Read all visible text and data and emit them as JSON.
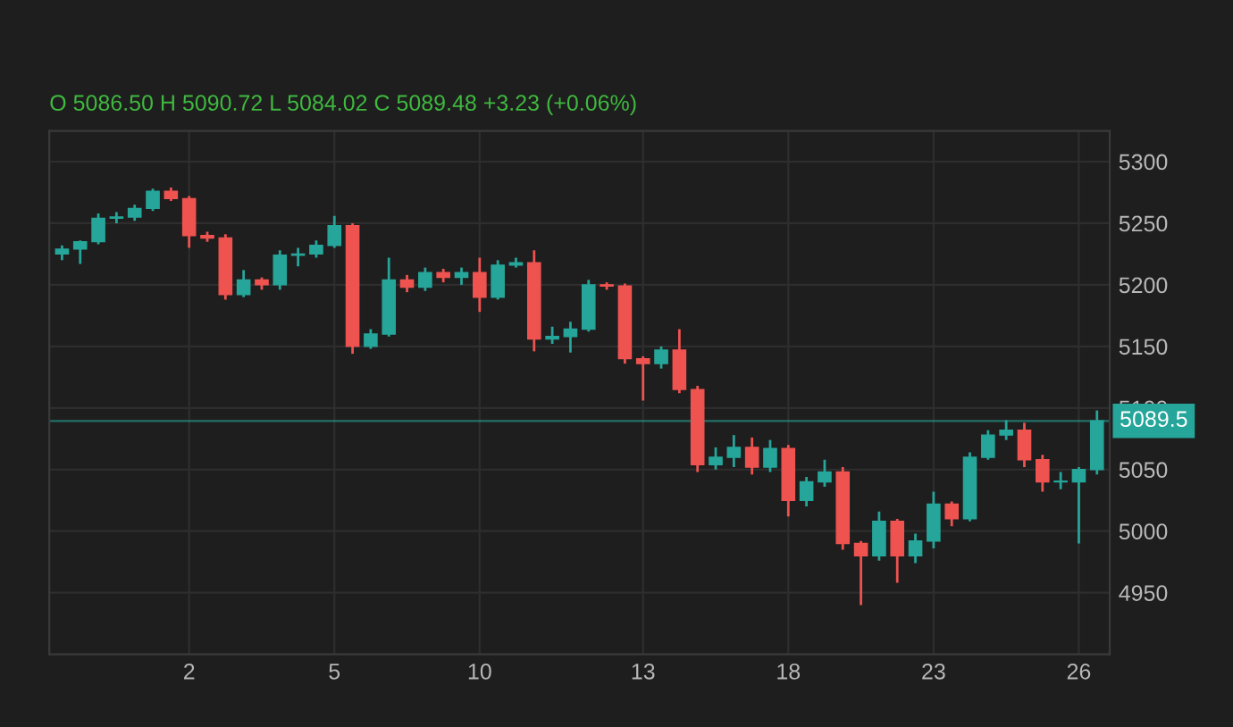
{
  "chart_data": {
    "type": "candlestick",
    "annotations": [
      "O 5086.50 H 5090.72 L 5084.02 C 5089.48 +3.23 (+0.06%)"
    ],
    "categories": [
      null,
      null,
      null,
      null,
      null,
      null,
      null,
      "2",
      null,
      null,
      null,
      null,
      null,
      null,
      null,
      "5",
      null,
      null,
      null,
      null,
      null,
      null,
      null,
      "10",
      null,
      null,
      null,
      null,
      null,
      null,
      null,
      null,
      "13",
      null,
      null,
      null,
      null,
      null,
      null,
      null,
      "18",
      null,
      null,
      null,
      null,
      null,
      null,
      null,
      "23",
      null,
      null,
      null,
      null,
      null,
      null,
      null,
      "26",
      null
    ],
    "ohlc": [
      [
        5225,
        5232,
        5220,
        5229
      ],
      [
        5229,
        5236,
        5217,
        5235
      ],
      [
        5235,
        5258,
        5233,
        5254
      ],
      [
        5254,
        5259,
        5250,
        5255
      ],
      [
        5255,
        5265,
        5252,
        5262
      ],
      [
        5262,
        5278,
        5260,
        5276
      ],
      [
        5276,
        5279,
        5268,
        5270
      ],
      [
        5270,
        5272,
        5230,
        5240
      ],
      [
        5240,
        5243,
        5235,
        5238
      ],
      [
        5238,
        5241,
        5188,
        5192
      ],
      [
        5192,
        5212,
        5190,
        5204
      ],
      [
        5204,
        5206,
        5196,
        5200
      ],
      [
        5200,
        5228,
        5196,
        5224
      ],
      [
        5224,
        5230,
        5215,
        5225
      ],
      [
        5225,
        5236,
        5222,
        5232
      ],
      [
        5232,
        5256,
        5230,
        5248
      ],
      [
        5248,
        5250,
        5144,
        5150
      ],
      [
        5150,
        5164,
        5148,
        5160
      ],
      [
        5160,
        5222,
        5158,
        5204
      ],
      [
        5204,
        5208,
        5194,
        5198
      ],
      [
        5198,
        5214,
        5195,
        5210
      ],
      [
        5210,
        5213,
        5202,
        5206
      ],
      [
        5206,
        5214,
        5200,
        5210
      ],
      [
        5210,
        5222,
        5178,
        5190
      ],
      [
        5190,
        5220,
        5188,
        5216
      ],
      [
        5216,
        5222,
        5214,
        5218
      ],
      [
        5218,
        5228,
        5146,
        5156
      ],
      [
        5156,
        5166,
        5152,
        5158
      ],
      [
        5158,
        5170,
        5145,
        5164
      ],
      [
        5164,
        5204,
        5162,
        5200
      ],
      [
        5200,
        5202,
        5196,
        5199
      ],
      [
        5199,
        5201,
        5136,
        5140
      ],
      [
        5140,
        5142,
        5106,
        5136
      ],
      [
        5136,
        5150,
        5132,
        5147
      ],
      [
        5147,
        5164,
        5112,
        5115
      ],
      [
        5115,
        5118,
        5048,
        5054
      ],
      [
        5054,
        5068,
        5050,
        5060
      ],
      [
        5060,
        5078,
        5052,
        5068
      ],
      [
        5068,
        5076,
        5046,
        5052
      ],
      [
        5052,
        5074,
        5048,
        5067
      ],
      [
        5067,
        5070,
        5012,
        5025
      ],
      [
        5025,
        5044,
        5020,
        5040
      ],
      [
        5040,
        5058,
        5036,
        5048
      ],
      [
        5048,
        5052,
        4985,
        4990
      ],
      [
        4990,
        4992,
        4940,
        4980
      ],
      [
        4980,
        5016,
        4976,
        5008
      ],
      [
        5008,
        5010,
        4958,
        4980
      ],
      [
        4980,
        4998,
        4974,
        4992
      ],
      [
        4992,
        5032,
        4986,
        5022
      ],
      [
        5022,
        5024,
        5004,
        5010
      ],
      [
        5010,
        5064,
        5008,
        5060
      ],
      [
        5060,
        5082,
        5058,
        5078
      ],
      [
        5078,
        5090,
        5074,
        5082
      ],
      [
        5082,
        5088,
        5052,
        5058
      ],
      [
        5058,
        5062,
        5032,
        5040
      ],
      [
        5040,
        5048,
        5034,
        5040
      ],
      [
        5040,
        5052,
        4990,
        5050
      ],
      [
        5050,
        5098,
        5046,
        5089.5
      ]
    ],
    "colors": [
      "#26a69a",
      "#26a69a",
      "#26a69a",
      "#26a69a",
      "#26a69a",
      "#26a69a",
      "#ef5350",
      "#ef5350",
      "#ef5350",
      "#ef5350",
      "#26a69a",
      "#ef5350",
      "#26a69a",
      "#26a69a",
      "#26a69a",
      "#26a69a",
      "#ef5350",
      "#26a69a",
      "#26a69a",
      "#ef5350",
      "#26a69a",
      "#ef5350",
      "#26a69a",
      "#ef5350",
      "#26a69a",
      "#26a69a",
      "#ef5350",
      "#26a69a",
      "#26a69a",
      "#26a69a",
      "#ef5350",
      "#ef5350",
      "#ef5350",
      "#26a69a",
      "#ef5350",
      "#ef5350",
      "#26a69a",
      "#26a69a",
      "#ef5350",
      "#26a69a",
      "#ef5350",
      "#26a69a",
      "#26a69a",
      "#ef5350",
      "#ef5350",
      "#26a69a",
      "#ef5350",
      "#26a69a",
      "#26a69a",
      "#ef5350",
      "#26a69a",
      "#26a69a",
      "#26a69a",
      "#ef5350",
      "#ef5350",
      "#26a69a",
      "#26a69a",
      "#26a69a"
    ],
    "ylim": [
      4900,
      5325
    ],
    "yticks": [
      4950,
      5000,
      5050,
      5100,
      5150,
      5200,
      5250,
      5300
    ],
    "ref_lines": [
      {
        "axis": "y",
        "value": 5089.5,
        "label": "5089.5",
        "color": "#26a69a"
      }
    ],
    "grid": true
  }
}
